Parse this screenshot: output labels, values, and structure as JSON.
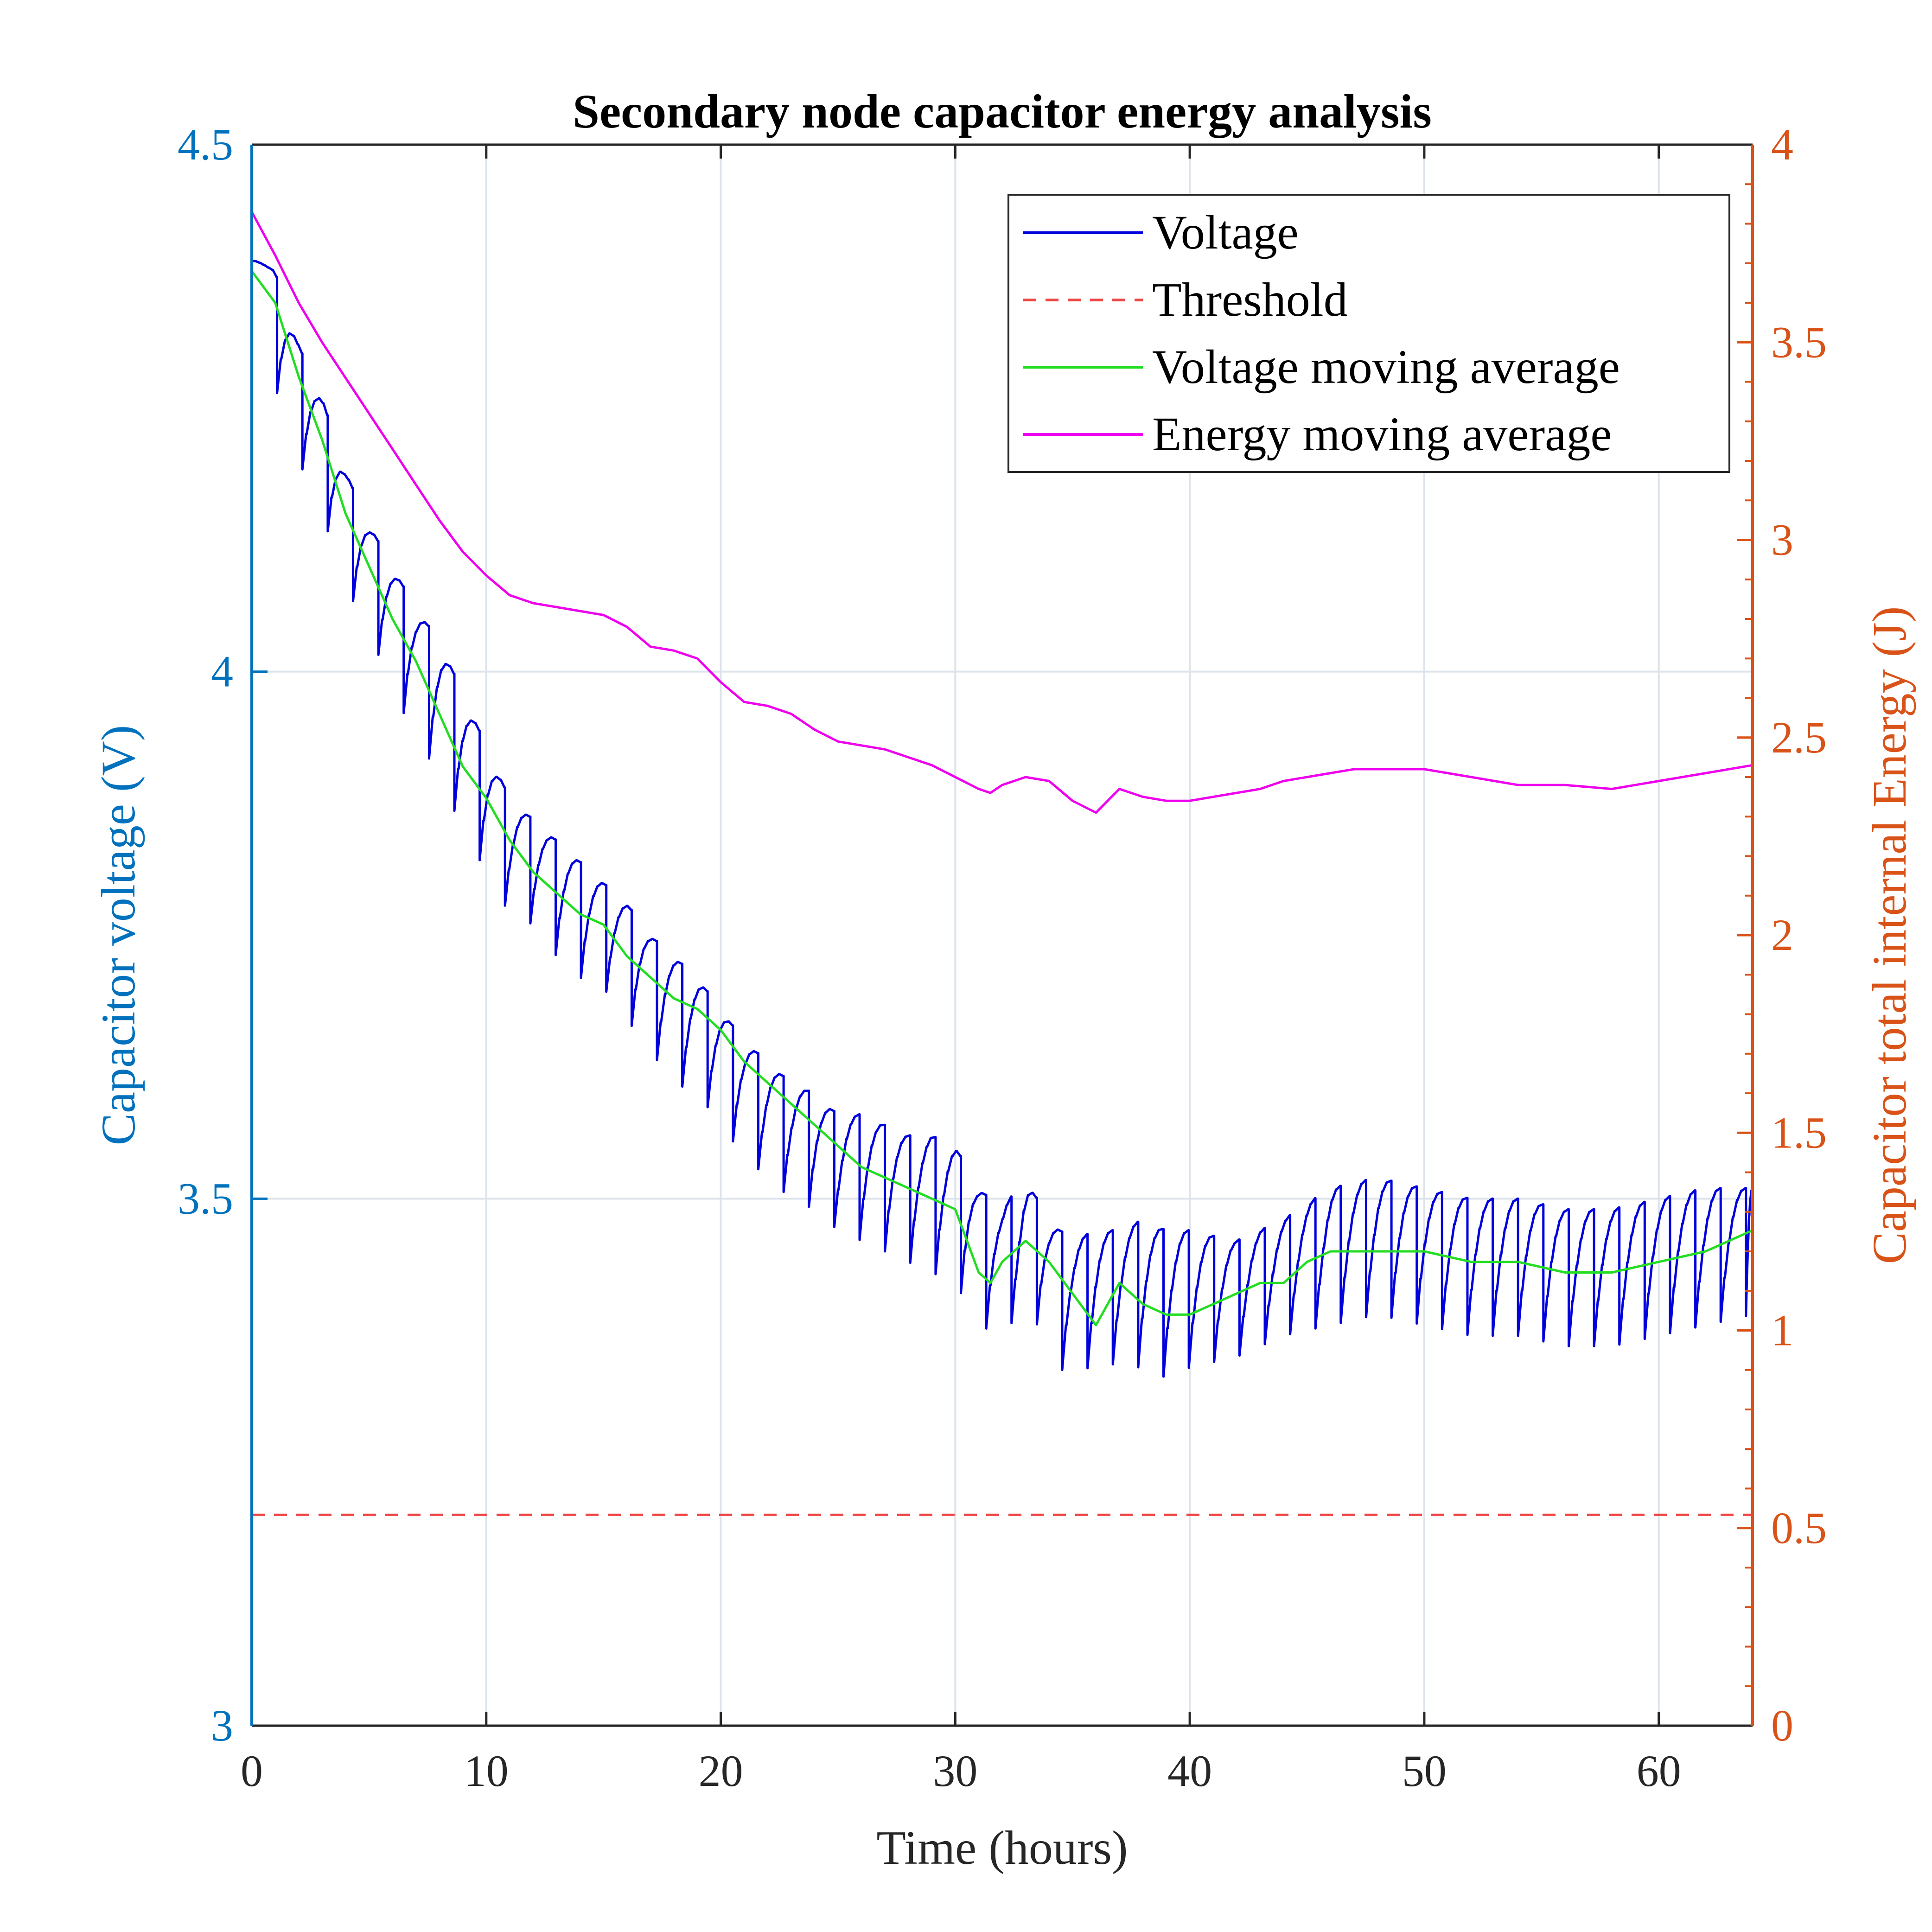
{
  "chart_data": {
    "type": "line",
    "title": "Secondary node capacitor energy analysis",
    "xlabel": "Time (hours)",
    "ylabel_left": "Capacitor voltage (V)",
    "ylabel_right": "Capacitor total internal Energy (J)",
    "xlim": [
      0,
      64
    ],
    "ylim_left": [
      3,
      4.5
    ],
    "ylim_right": [
      0,
      4
    ],
    "xticks": [
      0,
      10,
      20,
      30,
      40,
      50,
      60
    ],
    "xtick_labels": [
      "0",
      "10",
      "20",
      "30",
      "40",
      "50",
      "60"
    ],
    "yticks_left": [
      3,
      3.5,
      4,
      4.5
    ],
    "ytick_labels_left": [
      "3",
      "3.5",
      "4",
      "4.5"
    ],
    "yticks_right": [
      0,
      0.5,
      1,
      1.5,
      2,
      2.5,
      3,
      3.5,
      4
    ],
    "ytick_labels_right": [
      "0",
      "0.5",
      "1",
      "1.5",
      "2",
      "2.5",
      "3",
      "3.5",
      "4"
    ],
    "grid": true,
    "legend_position": "top-right",
    "colors": {
      "left_axis": "#0072BD",
      "right_axis": "#D95319",
      "grid": "#DCE3EA"
    },
    "series": [
      {
        "name": "Voltage",
        "axis": "left",
        "color": "#0000DD",
        "style": "solid",
        "sawtooth": {
          "period_hours": 1.08,
          "drop_volts": 0.065,
          "envelope_x": [
            0,
            1,
            2,
            3,
            4,
            5,
            6,
            7,
            8,
            9,
            10,
            11,
            12,
            13,
            14,
            15,
            16,
            17,
            18,
            19,
            20,
            21,
            22,
            23,
            24,
            25,
            26,
            27,
            28,
            29,
            30,
            31,
            32,
            33,
            34,
            35,
            36,
            37,
            38,
            39,
            40,
            42,
            44,
            46,
            48,
            50,
            52,
            54,
            56,
            58,
            60,
            62,
            64
          ],
          "envelope_top": [
            4.39,
            4.38,
            4.31,
            4.26,
            4.19,
            4.14,
            4.1,
            4.06,
            4.03,
            3.98,
            3.93,
            3.88,
            3.86,
            3.84,
            3.82,
            3.8,
            3.78,
            3.75,
            3.73,
            3.71,
            3.68,
            3.65,
            3.63,
            3.61,
            3.6,
            3.58,
            3.58,
            3.57,
            3.56,
            3.56,
            3.55,
            3.51,
            3.49,
            3.52,
            3.48,
            3.46,
            3.47,
            3.47,
            3.48,
            3.47,
            3.47,
            3.46,
            3.48,
            3.51,
            3.52,
            3.51,
            3.5,
            3.5,
            3.49,
            3.49,
            3.5,
            3.51,
            3.51
          ],
          "envelope_bottom": [
            4.39,
            4.27,
            4.2,
            4.15,
            4.08,
            4.04,
            3.98,
            3.94,
            3.9,
            3.85,
            3.81,
            3.77,
            3.76,
            3.73,
            3.71,
            3.7,
            3.67,
            3.64,
            3.61,
            3.6,
            3.57,
            3.54,
            3.52,
            3.5,
            3.49,
            3.47,
            3.46,
            3.45,
            3.44,
            3.43,
            3.42,
            3.38,
            3.37,
            3.4,
            3.36,
            3.32,
            3.35,
            3.34,
            3.34,
            3.33,
            3.34,
            3.35,
            3.37,
            3.38,
            3.39,
            3.38,
            3.37,
            3.37,
            3.36,
            3.36,
            3.37,
            3.38,
            3.39
          ]
        }
      },
      {
        "name": "Threshold",
        "axis": "left",
        "color": "#EE4444",
        "style": "dashed",
        "x": [
          0,
          64
        ],
        "y": [
          3.2,
          3.2
        ]
      },
      {
        "name": "Voltage moving average",
        "axis": "left",
        "color": "#22DD22",
        "style": "solid",
        "x": [
          0,
          1,
          2,
          3,
          4,
          5,
          6,
          7,
          8,
          9,
          10,
          11,
          12,
          13,
          14,
          15,
          16,
          17,
          18,
          19,
          20,
          21,
          22,
          23,
          24,
          25,
          26,
          27,
          28,
          29,
          30,
          31,
          31.5,
          32,
          33,
          34,
          35,
          36,
          37,
          38,
          39,
          40,
          41,
          42,
          43,
          44,
          45,
          46,
          47,
          48,
          50,
          52,
          54,
          56,
          58,
          60,
          62,
          64
        ],
        "y": [
          4.38,
          4.35,
          4.28,
          4.22,
          4.15,
          4.1,
          4.05,
          4.01,
          3.96,
          3.91,
          3.88,
          3.84,
          3.81,
          3.79,
          3.77,
          3.76,
          3.73,
          3.71,
          3.69,
          3.68,
          3.66,
          3.63,
          3.61,
          3.59,
          3.57,
          3.55,
          3.53,
          3.52,
          3.51,
          3.5,
          3.49,
          3.43,
          3.42,
          3.44,
          3.46,
          3.44,
          3.41,
          3.38,
          3.42,
          3.4,
          3.39,
          3.39,
          3.4,
          3.41,
          3.42,
          3.42,
          3.44,
          3.45,
          3.45,
          3.45,
          3.45,
          3.44,
          3.44,
          3.43,
          3.43,
          3.44,
          3.45,
          3.47
        ]
      },
      {
        "name": "Energy moving average",
        "axis": "right",
        "color": "#EE00EE",
        "style": "solid",
        "x": [
          0,
          1,
          2,
          3,
          4,
          5,
          6,
          7,
          8,
          9,
          10,
          11,
          12,
          13,
          14,
          15,
          16,
          17,
          18,
          19,
          20,
          21,
          22,
          23,
          24,
          25,
          26,
          27,
          28,
          29,
          30,
          31,
          31.5,
          32,
          33,
          34,
          35,
          36,
          37,
          38,
          39,
          40,
          41,
          42,
          43,
          44,
          45,
          46,
          47,
          48,
          50,
          52,
          54,
          56,
          58,
          60,
          62,
          64
        ],
        "y": [
          3.83,
          3.72,
          3.6,
          3.5,
          3.41,
          3.32,
          3.23,
          3.14,
          3.05,
          2.97,
          2.91,
          2.86,
          2.84,
          2.83,
          2.82,
          2.81,
          2.78,
          2.73,
          2.72,
          2.7,
          2.64,
          2.59,
          2.58,
          2.56,
          2.52,
          2.49,
          2.48,
          2.47,
          2.45,
          2.43,
          2.4,
          2.37,
          2.36,
          2.38,
          2.4,
          2.39,
          2.34,
          2.31,
          2.37,
          2.35,
          2.34,
          2.34,
          2.35,
          2.36,
          2.37,
          2.39,
          2.4,
          2.41,
          2.42,
          2.42,
          2.42,
          2.4,
          2.38,
          2.38,
          2.37,
          2.39,
          2.41,
          2.43
        ]
      }
    ]
  }
}
